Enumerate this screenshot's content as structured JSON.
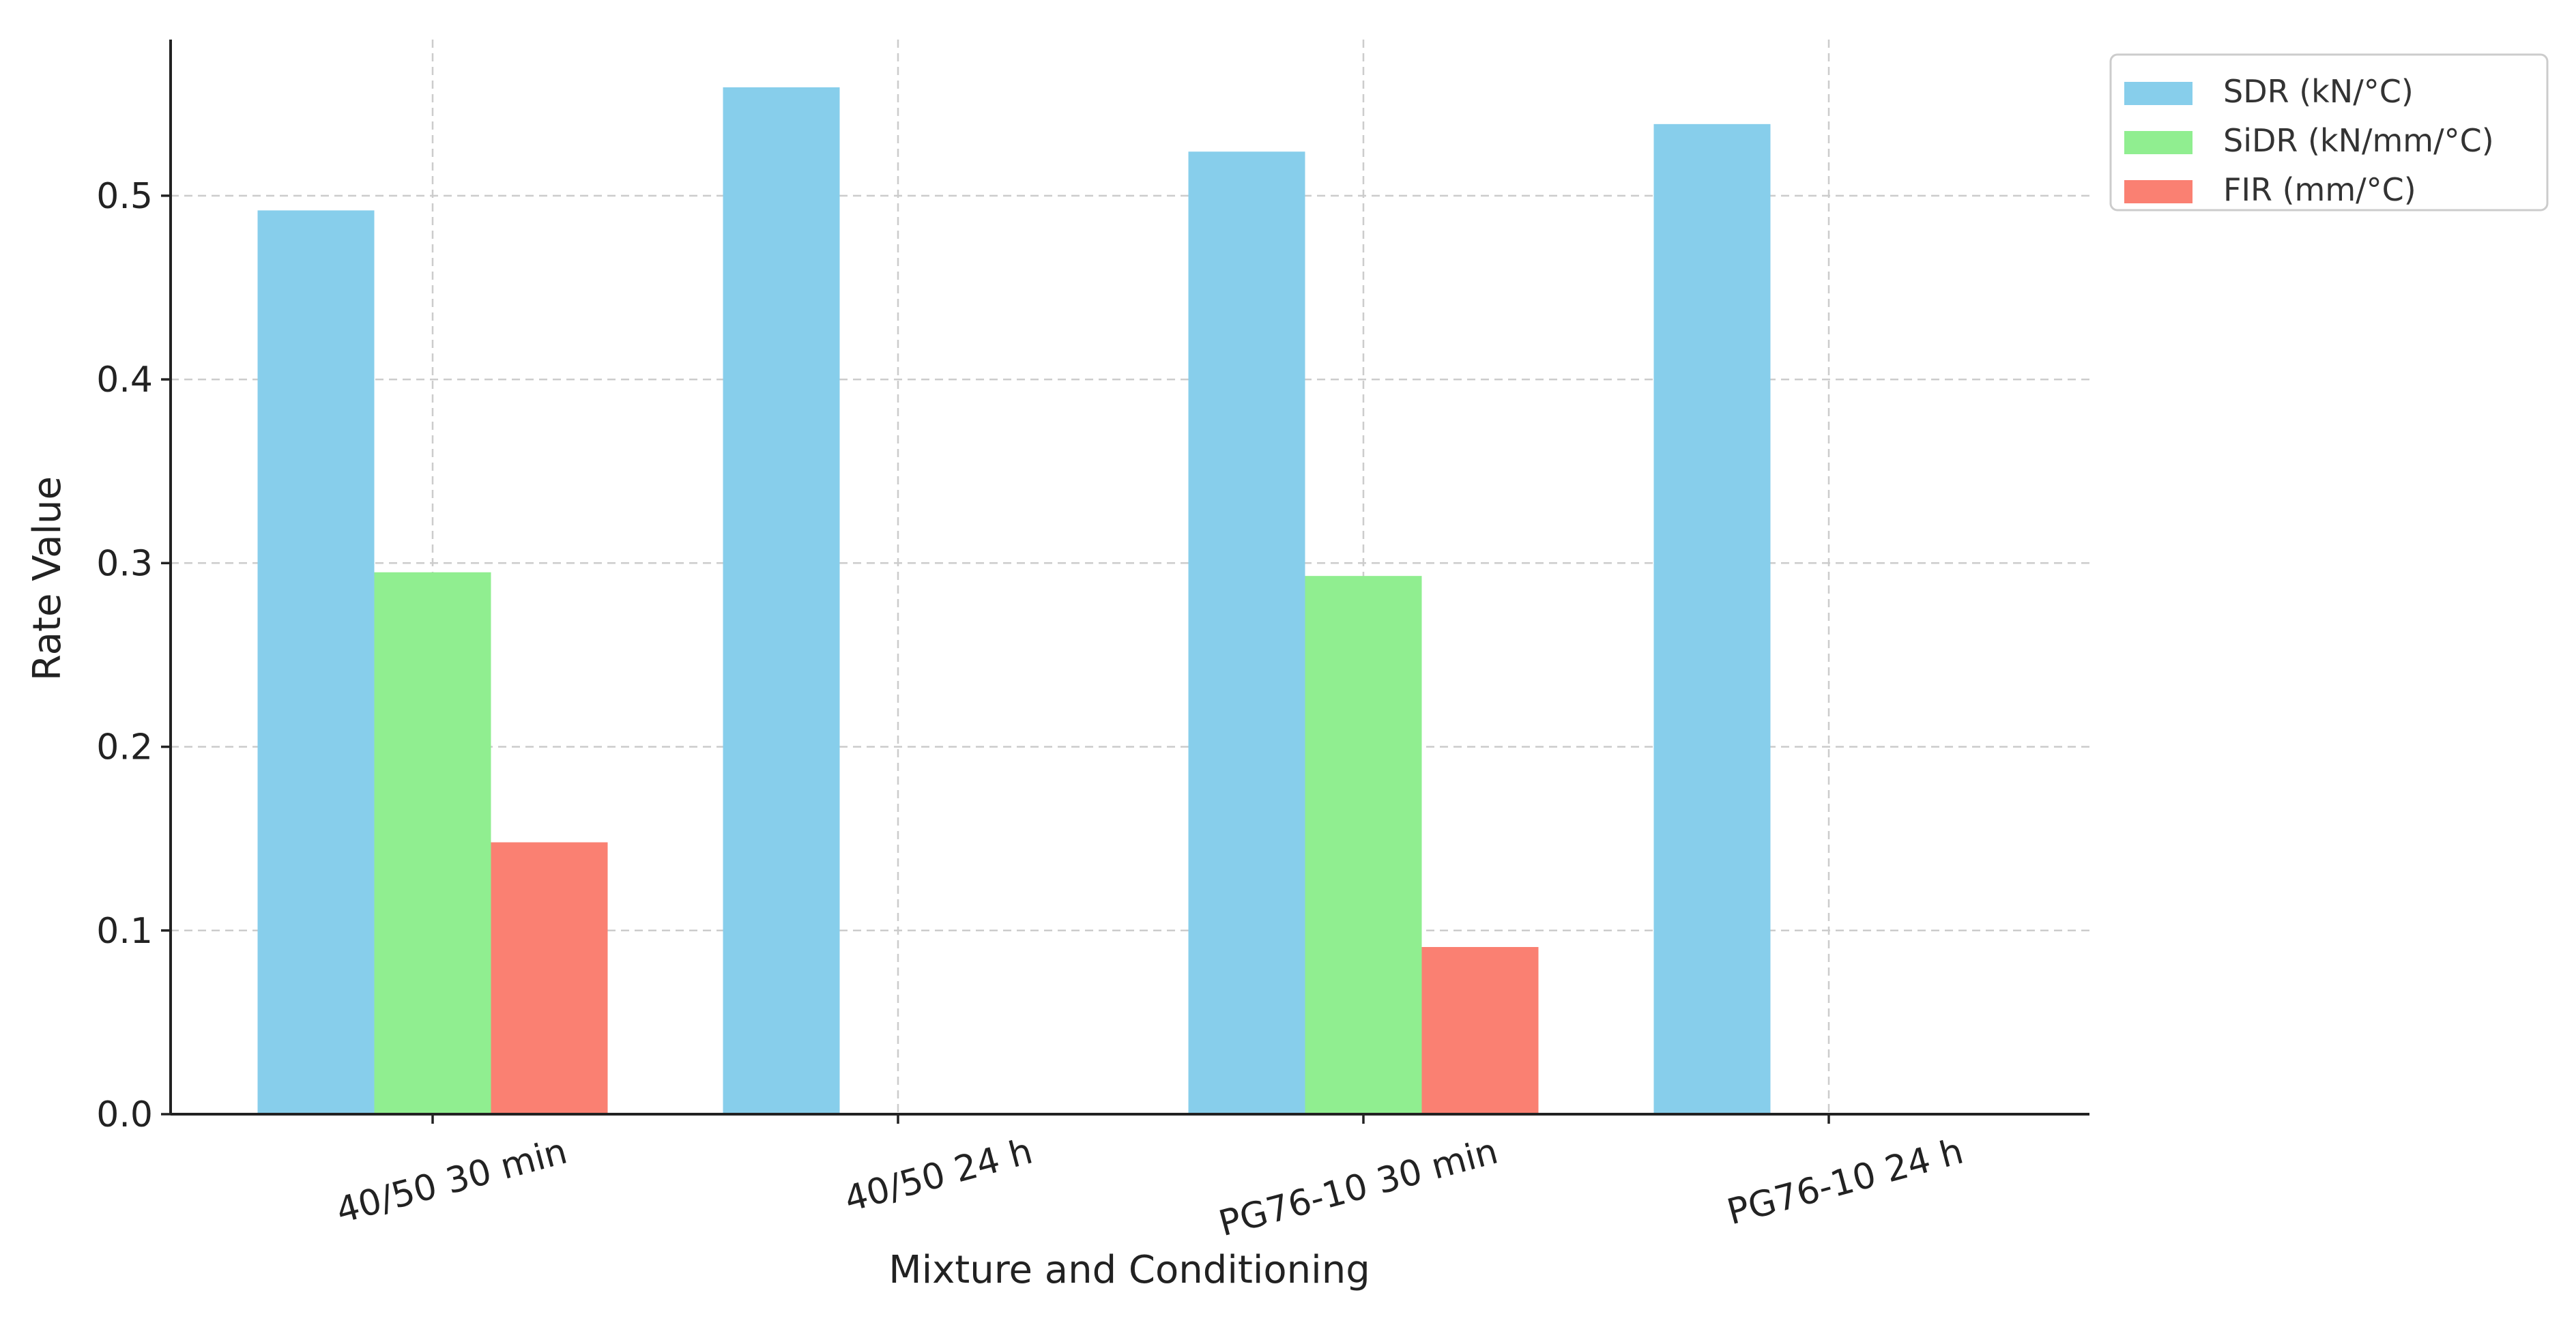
{
  "chart_data": {
    "type": "bar",
    "title": "",
    "xlabel": "Mixture and Conditioning",
    "ylabel": "Rate Value",
    "ylim": [
      0,
      0.585
    ],
    "yticks": [
      "0.0",
      "0.1",
      "0.2",
      "0.3",
      "0.4",
      "0.5"
    ],
    "categories": [
      "40/50 30 min",
      "40/50 24 h",
      "PG76-10 30 min",
      "PG76-10 24 h"
    ],
    "series": [
      {
        "name": "SDR (kN/°C)",
        "color": "#87ceeb",
        "values": [
          0.492,
          0.559,
          0.524,
          0.539
        ]
      },
      {
        "name": "SiDR (kN/mm/°C)",
        "color": "#90ee90",
        "values": [
          0.295,
          null,
          0.293,
          null
        ]
      },
      {
        "name": "FIR (mm/°C)",
        "color": "#fa8072",
        "values": [
          0.148,
          null,
          0.091,
          null
        ]
      }
    ],
    "grid": true,
    "legend_position": "top-right"
  }
}
